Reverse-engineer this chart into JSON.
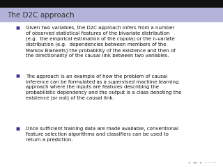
{
  "title": "The D2C approach",
  "title_bg_color": "#b3b3d9",
  "title_text_color": "#333333",
  "body_bg_color": "#ffffff",
  "bullet_color": "#333399",
  "text_color": "#111111",
  "font_size": 5.0,
  "title_font_size": 7.5,
  "top_bar_color": "#111111",
  "bullets": [
    "Given two variables, the D2C approach infers from a number\nof observed statistical features of the bivariate distribution\n(e.g.  the empirical estimation of the copula) or the n-variate\ndistribution (e.g.  dependencies between members of the\nMarkov Blankets) the probability of the existence and then of\nthe directionality of the causal link between two variables.",
    "The approach is an example of how the problem of causal\ninference can be formulated as a supervised machine learning\napproach where the inputs are features describing the\nprobabilistic dependency and the output is a class denoting the\nexistence (or not) of the causal link.",
    "Once sufficient training data are made available, conventional\nfeature selection algorithms and classifiers can be used to\nreturn a prediction."
  ],
  "figsize": [
    3.2,
    2.4
  ],
  "dpi": 100
}
